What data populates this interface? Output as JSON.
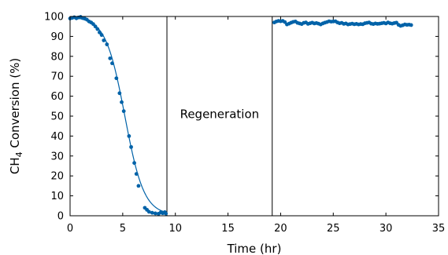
{
  "chart_data": {
    "type": "scatter",
    "title": "",
    "xlabel": "Time (hr)",
    "ylabel": "CH4 Conversion (%)",
    "ylabel_parts": {
      "pre": "CH",
      "sub": "4",
      "post": " Conversion (%)"
    },
    "xlim": [
      0,
      35
    ],
    "ylim": [
      0,
      100
    ],
    "x_ticks": [
      0,
      5,
      10,
      15,
      20,
      25,
      30,
      35
    ],
    "y_ticks": [
      0,
      10,
      20,
      30,
      40,
      50,
      60,
      70,
      80,
      90,
      100
    ],
    "grid": false,
    "legend": "none",
    "marker_color": "#0062a8",
    "fit_color": "#0062a8",
    "vlines": [
      9.2,
      19.2
    ],
    "annotations": [
      {
        "text": "Regeneration",
        "x": 14.2,
        "y": 51
      }
    ],
    "series": [
      {
        "points": [
          [
            0.0,
            99.0
          ],
          [
            0.2,
            99.3
          ],
          [
            0.4,
            99.6
          ],
          [
            0.6,
            99.1
          ],
          [
            0.8,
            99.5
          ],
          [
            1.0,
            99.8
          ],
          [
            1.2,
            99.2
          ],
          [
            1.4,
            98.9
          ],
          [
            1.6,
            98.4
          ],
          [
            1.8,
            97.5
          ],
          [
            2.0,
            97.0
          ],
          [
            2.2,
            96.2
          ],
          [
            2.4,
            95.0
          ],
          [
            2.6,
            93.7
          ],
          [
            2.8,
            92.0
          ],
          [
            3.0,
            90.7
          ],
          [
            3.2,
            88.0
          ],
          [
            3.5,
            86.0
          ],
          [
            3.8,
            79.0
          ],
          [
            4.0,
            76.5
          ],
          [
            4.4,
            69.0
          ],
          [
            4.7,
            61.5
          ],
          [
            4.9,
            57.0
          ],
          [
            5.1,
            52.5
          ],
          [
            5.6,
            40.0
          ],
          [
            5.8,
            34.5
          ],
          [
            6.1,
            26.5
          ],
          [
            6.3,
            21.0
          ],
          [
            6.5,
            15.0
          ],
          [
            7.1,
            4.0
          ],
          [
            7.3,
            3.0
          ],
          [
            7.5,
            2.0
          ],
          [
            7.8,
            1.5
          ],
          [
            8.1,
            1.2
          ],
          [
            8.4,
            1.0
          ],
          [
            8.6,
            1.6
          ],
          [
            8.8,
            1.3
          ],
          [
            9.0,
            1.8
          ],
          [
            9.1,
            1.1
          ]
        ]
      },
      {
        "points": [
          [
            19.4,
            97.0
          ],
          [
            19.6,
            97.5
          ],
          [
            19.8,
            97.8
          ],
          [
            20.0,
            97.6
          ],
          [
            20.2,
            97.8
          ],
          [
            20.4,
            97.2
          ],
          [
            20.6,
            96.0
          ],
          [
            20.8,
            96.4
          ],
          [
            21.0,
            96.9
          ],
          [
            21.2,
            97.3
          ],
          [
            21.4,
            97.5
          ],
          [
            21.6,
            96.8
          ],
          [
            21.8,
            96.5
          ],
          [
            22.0,
            96.2
          ],
          [
            22.2,
            96.8
          ],
          [
            22.4,
            97.0
          ],
          [
            22.6,
            96.3
          ],
          [
            22.8,
            96.6
          ],
          [
            23.0,
            96.9
          ],
          [
            23.2,
            96.5
          ],
          [
            23.4,
            96.7
          ],
          [
            23.6,
            96.4
          ],
          [
            23.8,
            96.0
          ],
          [
            24.0,
            96.5
          ],
          [
            24.2,
            96.9
          ],
          [
            24.4,
            97.2
          ],
          [
            24.6,
            97.6
          ],
          [
            24.8,
            97.4
          ],
          [
            25.0,
            97.5
          ],
          [
            25.2,
            97.6
          ],
          [
            25.4,
            97.0
          ],
          [
            25.6,
            96.6
          ],
          [
            25.8,
            96.8
          ],
          [
            26.0,
            96.3
          ],
          [
            26.2,
            96.5
          ],
          [
            26.4,
            96.0
          ],
          [
            26.6,
            96.2
          ],
          [
            26.8,
            96.4
          ],
          [
            27.0,
            96.1
          ],
          [
            27.2,
            96.3
          ],
          [
            27.4,
            96.0
          ],
          [
            27.6,
            96.2
          ],
          [
            27.8,
            96.1
          ],
          [
            28.0,
            96.6
          ],
          [
            28.2,
            96.8
          ],
          [
            28.4,
            97.0
          ],
          [
            28.6,
            96.4
          ],
          [
            28.8,
            96.2
          ],
          [
            29.0,
            96.5
          ],
          [
            29.2,
            96.3
          ],
          [
            29.4,
            96.4
          ],
          [
            29.6,
            96.6
          ],
          [
            29.8,
            96.8
          ],
          [
            30.0,
            96.5
          ],
          [
            30.2,
            97.0
          ],
          [
            30.4,
            96.6
          ],
          [
            30.6,
            96.4
          ],
          [
            30.8,
            96.7
          ],
          [
            31.0,
            96.9
          ],
          [
            31.2,
            95.8
          ],
          [
            31.4,
            95.3
          ],
          [
            31.6,
            95.6
          ],
          [
            31.8,
            96.0
          ],
          [
            32.0,
            95.8
          ],
          [
            32.2,
            95.9
          ],
          [
            32.4,
            95.7
          ]
        ]
      }
    ],
    "fit_curve": {
      "shape": "logistic",
      "upper": 99.8,
      "lower": 0.4,
      "midpoint": 5.2,
      "slope": 1.1,
      "x_range": [
        0,
        9.1
      ]
    }
  }
}
